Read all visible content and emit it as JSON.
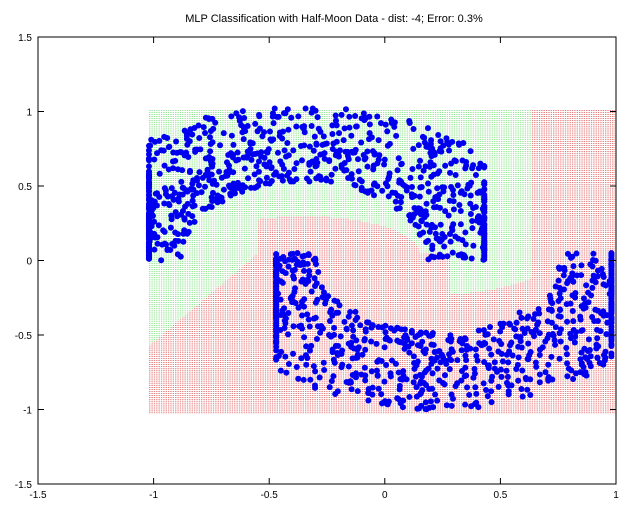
{
  "chart_data": {
    "type": "scatter",
    "title": "MLP Classification with Half-Moon Data - dist: -4; Error: 0.3%",
    "xlabel": "",
    "ylabel": "",
    "xlim": [
      -1.5,
      1.0
    ],
    "ylim": [
      -1.5,
      1.5
    ],
    "x_ticks": [
      "-1.5",
      "-1",
      "-0.5",
      "0",
      "0.5",
      "1"
    ],
    "y_ticks": [
      "1.5",
      "1",
      "0.5",
      "0",
      "-0.5",
      "-1",
      "-1.5"
    ],
    "grid": false,
    "legend": "none",
    "decision_region": {
      "x_range": [
        -1.02,
        1.0
      ],
      "y_range": [
        -1.02,
        1.02
      ],
      "class_colors": {
        "upper": "#33cc33",
        "lower": "#cc0000"
      }
    },
    "series": [
      {
        "color": "#0000ee",
        "point_groups": [
          {
            "shape": "upper-half-moon",
            "center": [
              -0.35,
              0.0
            ],
            "radius": 0.8,
            "x_range": [
              -1.02,
              0.43
            ],
            "y_range": [
              -0.1,
              1.02
            ]
          },
          {
            "shape": "lower-half-moon",
            "center": [
              0.23,
              0.05
            ],
            "radius": 0.8,
            "x_range": [
              -0.47,
              0.98
            ],
            "y_range": [
              -1.02,
              0.2
            ]
          }
        ]
      }
    ]
  }
}
